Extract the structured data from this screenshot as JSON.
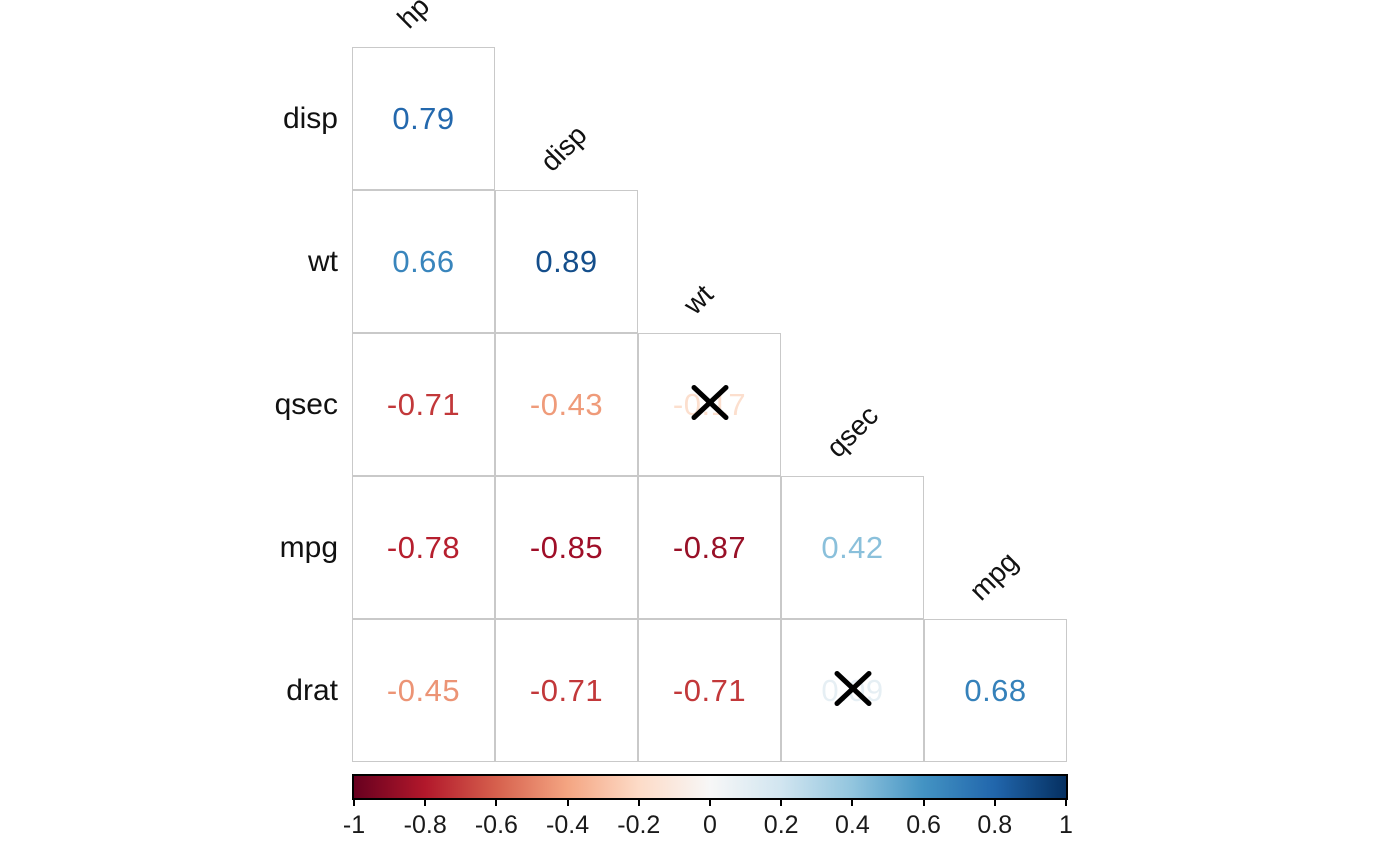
{
  "chart_data": {
    "type": "heatmap",
    "subtype": "correlation-matrix-lower-triangle",
    "title": "",
    "columns": [
      "hp",
      "disp",
      "wt",
      "qsec",
      "mpg"
    ],
    "rows": [
      {
        "label": "disp",
        "cells": [
          {
            "col": "hp",
            "value": 0.79,
            "display": "0.79",
            "color": "#2368ad",
            "crossed": false
          }
        ]
      },
      {
        "label": "wt",
        "cells": [
          {
            "col": "hp",
            "value": 0.66,
            "display": "0.66",
            "color": "#3985bc",
            "crossed": false
          },
          {
            "col": "disp",
            "value": 0.89,
            "display": "0.89",
            "color": "#144e8b",
            "crossed": false
          }
        ]
      },
      {
        "label": "qsec",
        "cells": [
          {
            "col": "hp",
            "value": -0.71,
            "display": "-0.71",
            "color": "#c2383a",
            "crossed": false
          },
          {
            "col": "disp",
            "value": -0.43,
            "display": "-0.43",
            "color": "#ef9b7a",
            "crossed": false
          },
          {
            "col": "wt",
            "value": -0.17,
            "display": "-0.17",
            "color": "#fcdfce",
            "crossed": true
          }
        ]
      },
      {
        "label": "mpg",
        "cells": [
          {
            "col": "hp",
            "value": -0.78,
            "display": "-0.78",
            "color": "#b61f2e",
            "crossed": false
          },
          {
            "col": "disp",
            "value": -0.85,
            "display": "-0.85",
            "color": "#9f0e28",
            "crossed": false
          },
          {
            "col": "wt",
            "value": -0.87,
            "display": "-0.87",
            "color": "#981027",
            "crossed": false
          },
          {
            "col": "qsec",
            "value": 0.42,
            "display": "0.42",
            "color": "#8ac0db",
            "crossed": false
          }
        ]
      },
      {
        "label": "drat",
        "cells": [
          {
            "col": "hp",
            "value": -0.45,
            "display": "-0.45",
            "color": "#ec9475",
            "crossed": false
          },
          {
            "col": "disp",
            "value": -0.71,
            "display": "-0.71",
            "color": "#c2383a",
            "crossed": false
          },
          {
            "col": "wt",
            "value": -0.71,
            "display": "-0.71",
            "color": "#c2383a",
            "crossed": false
          },
          {
            "col": "qsec",
            "value": 0.09,
            "display": "0.09",
            "color": "#e6eff4",
            "crossed": true
          },
          {
            "col": "mpg",
            "value": 0.68,
            "display": "0.68",
            "color": "#3581ba",
            "crossed": false
          }
        ]
      }
    ],
    "marker": {
      "shape": "x-cross",
      "color": "#000000"
    },
    "grid": {
      "line_color": "#c9c9c9",
      "cell_background": "#ffffff"
    },
    "colorbar": {
      "min": -1,
      "max": 1,
      "position": "bottom",
      "tick_labels": [
        "-1",
        "-0.8",
        "-0.6",
        "-0.4",
        "-0.2",
        "0",
        "0.2",
        "0.4",
        "0.6",
        "0.8",
        "1"
      ],
      "gradient_stops": [
        "#67001f",
        "#b2182b",
        "#d6604d",
        "#f4a582",
        "#fddbc7",
        "#f7f7f7",
        "#d1e5f0",
        "#92c5de",
        "#4393c3",
        "#2166ac",
        "#053061"
      ]
    }
  }
}
